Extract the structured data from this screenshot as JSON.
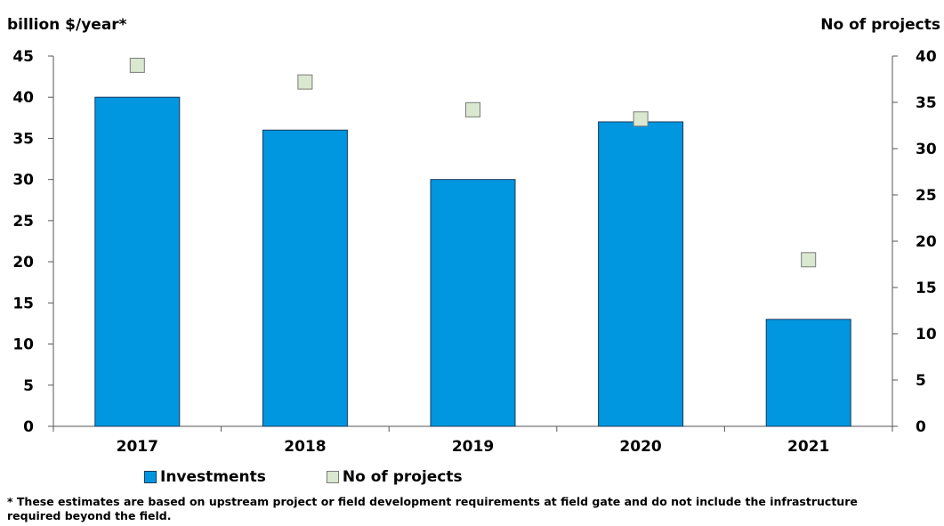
{
  "chart_data": {
    "type": "bar",
    "categories": [
      "2017",
      "2018",
      "2019",
      "2020",
      "2021"
    ],
    "series": [
      {
        "name": "Investments",
        "kind": "bar",
        "axis": "left",
        "color": "#0096e0",
        "values": [
          40,
          36,
          30,
          37,
          13
        ]
      },
      {
        "name": "No of projects",
        "kind": "scatter",
        "axis": "right",
        "color": "#d9e8cf",
        "values": [
          39,
          37.2,
          34.2,
          33.2,
          18
        ]
      }
    ],
    "ylabel": "billion $/year*",
    "ylabel_right": "No of projects",
    "ylim": [
      0,
      45
    ],
    "ylim_right": [
      0,
      40
    ],
    "yticks": [
      0,
      5,
      10,
      15,
      20,
      25,
      30,
      35,
      40,
      45
    ],
    "yticks_right": [
      0,
      5,
      10,
      15,
      20,
      25,
      30,
      35,
      40
    ],
    "grid": false,
    "legend_position": "bottom",
    "footnote": "* These estimates are based on upstream project or field development requirements at field gate and do not include the infrastructure required beyond the field."
  }
}
